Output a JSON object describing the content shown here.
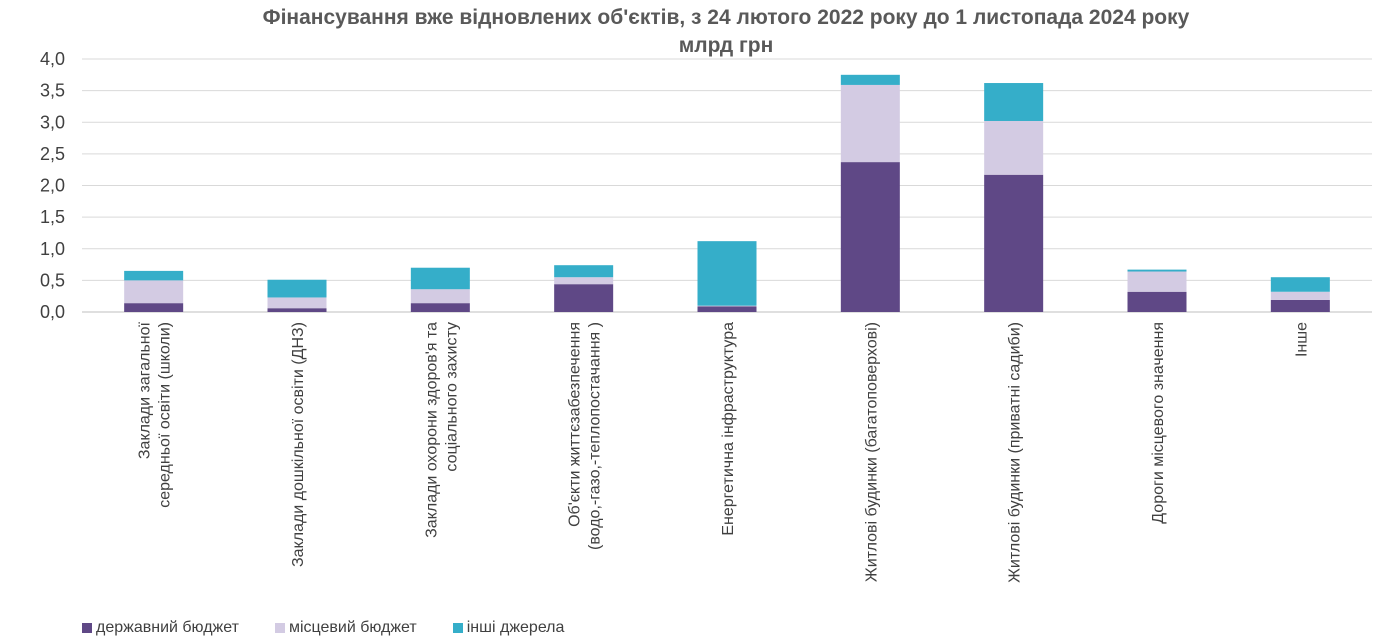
{
  "chart_data": {
    "type": "bar",
    "stacked": true,
    "title": "Фінансування вже відновлених об'єктів, з 24 лютого 2022 року до 1 листопада 2024 року",
    "subtitle": "млрд грн",
    "ylim": [
      0,
      4.0
    ],
    "yticks": [
      "0,0",
      "0,5",
      "1,0",
      "1,5",
      "2,0",
      "2,5",
      "3,0",
      "3,5",
      "4,0"
    ],
    "grid": true,
    "legend_position": "bottom-left",
    "categories": [
      [
        "Заклади загальної",
        "середньої освіти (школи)"
      ],
      [
        "Заклади дошкільної освіти (ДНЗ)"
      ],
      [
        "Заклади охорони здоров'я та",
        "соціального захисту"
      ],
      [
        "Об'єкти життєзабезпечення",
        "(водо,-газо,-теплопостачання )"
      ],
      [
        "Енергетична інфраструктура"
      ],
      [
        "Житлові будинки (багатоповерхові)"
      ],
      [
        "Житлові будинки (приватні садиби)"
      ],
      [
        "Дороги місцевого значення"
      ],
      [
        "Інше"
      ]
    ],
    "series": [
      {
        "name": "державний бюджет",
        "color": "#5f4886",
        "values": [
          0.14,
          0.06,
          0.14,
          0.44,
          0.09,
          2.37,
          2.17,
          0.32,
          0.19
        ]
      },
      {
        "name": "місцевий бюджет",
        "color": "#d3cbe3",
        "values": [
          0.36,
          0.17,
          0.22,
          0.11,
          0.01,
          1.22,
          0.85,
          0.32,
          0.13
        ]
      },
      {
        "name": "інші джерела",
        "color": "#35aec9",
        "values": [
          0.15,
          0.28,
          0.34,
          0.19,
          1.02,
          0.16,
          0.6,
          0.03,
          0.23
        ]
      }
    ]
  }
}
